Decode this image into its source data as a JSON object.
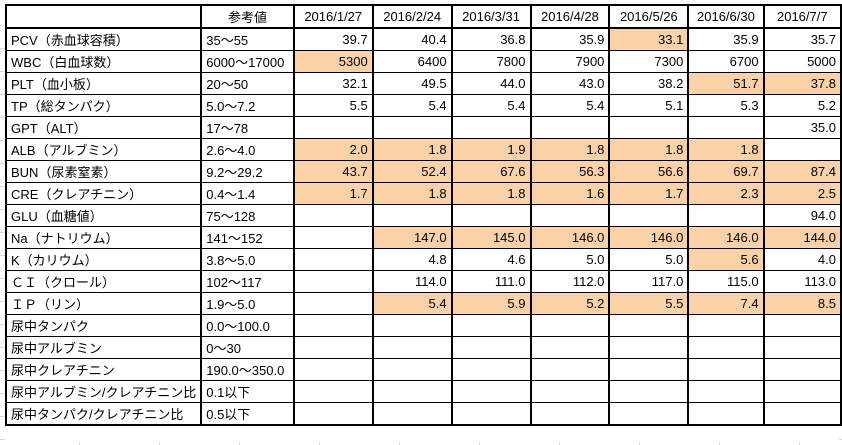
{
  "table": {
    "corner_label": "",
    "ref_header": "参考値",
    "date_headers": [
      "2016/1/27",
      "2016/2/24",
      "2016/3/31",
      "2016/4/28",
      "2016/5/26",
      "2016/6/30",
      "2016/7/7"
    ],
    "rows": [
      {
        "label": "PCV（赤血球容積）",
        "ref": "35～55",
        "values": [
          "39.7",
          "40.4",
          "36.8",
          "35.9",
          "33.1",
          "35.9",
          "35.7"
        ],
        "highlights": [
          false,
          false,
          false,
          false,
          true,
          false,
          false
        ]
      },
      {
        "label": "WBC（白血球数）",
        "ref": "6000～17000",
        "values": [
          "5300",
          "6400",
          "7800",
          "7900",
          "7300",
          "6700",
          "5000"
        ],
        "highlights": [
          true,
          false,
          false,
          false,
          false,
          false,
          false
        ]
      },
      {
        "label": "PLT（血小板）",
        "ref": "20～50",
        "values": [
          "32.1",
          "49.5",
          "44.0",
          "43.0",
          "38.2",
          "51.7",
          "37.8"
        ],
        "highlights": [
          false,
          false,
          false,
          false,
          false,
          true,
          true
        ]
      },
      {
        "label": "TP（総タンパク）",
        "ref": "5.0～7.2",
        "values": [
          "5.5",
          "5.4",
          "5.4",
          "5.4",
          "5.1",
          "5.3",
          "5.2"
        ],
        "highlights": [
          false,
          false,
          false,
          false,
          false,
          false,
          false
        ]
      },
      {
        "label": "GPT（ALT）",
        "ref": "17～78",
        "values": [
          "",
          "",
          "",
          "",
          "",
          "",
          "35.0"
        ],
        "highlights": [
          false,
          false,
          false,
          false,
          false,
          false,
          false
        ]
      },
      {
        "label": "ALB（アルブミン）",
        "ref": "2.6～4.0",
        "values": [
          "2.0",
          "1.8",
          "1.9",
          "1.8",
          "1.8",
          "1.8",
          ""
        ],
        "highlights": [
          true,
          true,
          true,
          true,
          true,
          true,
          false
        ]
      },
      {
        "label": "BUN（尿素窒素）",
        "ref": "9.2～29.2",
        "values": [
          "43.7",
          "52.4",
          "67.6",
          "56.3",
          "56.6",
          "69.7",
          "87.4"
        ],
        "highlights": [
          true,
          true,
          true,
          true,
          true,
          true,
          true
        ]
      },
      {
        "label": "CRE（クレアチニン）",
        "ref": "0.4～1.4",
        "values": [
          "1.7",
          "1.8",
          "1.8",
          "1.6",
          "1.7",
          "2.3",
          "2.5"
        ],
        "highlights": [
          true,
          true,
          true,
          true,
          true,
          true,
          true
        ]
      },
      {
        "label": "GLU（血糖値）",
        "ref": "75～128",
        "values": [
          "",
          "",
          "",
          "",
          "",
          "",
          "94.0"
        ],
        "highlights": [
          false,
          false,
          false,
          false,
          false,
          false,
          false
        ]
      },
      {
        "label": "Na（ナトリウム）",
        "ref": "141～152",
        "values": [
          "",
          "147.0",
          "145.0",
          "146.0",
          "146.0",
          "146.0",
          "144.0"
        ],
        "highlights": [
          false,
          true,
          true,
          true,
          true,
          true,
          true
        ]
      },
      {
        "label": "K（カリウム）",
        "ref": "3.8～5.0",
        "values": [
          "",
          "4.8",
          "4.6",
          "5.0",
          "5.0",
          "5.6",
          "4.0"
        ],
        "highlights": [
          false,
          false,
          false,
          false,
          false,
          true,
          false
        ]
      },
      {
        "label": "ＣＩ（クロール）",
        "ref": "102～117",
        "values": [
          "",
          "114.0",
          "111.0",
          "112.0",
          "117.0",
          "115.0",
          "113.0"
        ],
        "highlights": [
          false,
          false,
          false,
          false,
          false,
          false,
          false
        ]
      },
      {
        "label": "ＩＰ（リン）",
        "ref": "1.9～5.0",
        "values": [
          "",
          "5.4",
          "5.9",
          "5.2",
          "5.5",
          "7.4",
          "8.5"
        ],
        "highlights": [
          false,
          true,
          true,
          true,
          true,
          true,
          true
        ]
      },
      {
        "label": "尿中タンパク",
        "ref": "0.0～100.0",
        "values": [
          "",
          "",
          "",
          "",
          "",
          "",
          ""
        ],
        "highlights": [
          false,
          false,
          false,
          false,
          false,
          false,
          false
        ]
      },
      {
        "label": "尿中アルブミン",
        "ref": "0～30",
        "values": [
          "",
          "",
          "",
          "",
          "",
          "",
          ""
        ],
        "highlights": [
          false,
          false,
          false,
          false,
          false,
          false,
          false
        ]
      },
      {
        "label": "尿中クレアチニン",
        "ref": "190.0～350.0",
        "values": [
          "",
          "",
          "",
          "",
          "",
          "",
          ""
        ],
        "highlights": [
          false,
          false,
          false,
          false,
          false,
          false,
          false
        ]
      },
      {
        "label": "尿中アルブミン/クレアチニン比",
        "ref": "0.1以下",
        "values": [
          "",
          "",
          "",
          "",
          "",
          "",
          ""
        ],
        "highlights": [
          false,
          false,
          false,
          false,
          false,
          false,
          false
        ]
      },
      {
        "label": "尿中タンパク/クレアチニン比",
        "ref": "0.5以下",
        "values": [
          "",
          "",
          "",
          "",
          "",
          "",
          ""
        ],
        "highlights": [
          false,
          false,
          false,
          false,
          false,
          false,
          false
        ]
      }
    ]
  },
  "colors": {
    "highlight": "#FBD1A8",
    "border": "#000000",
    "gridline": "#D9D9D9"
  }
}
